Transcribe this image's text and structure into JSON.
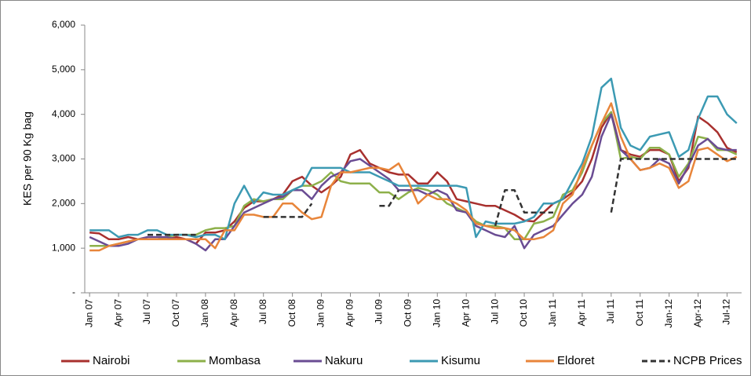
{
  "chart_data": {
    "type": "line",
    "y_label": "KES per 90 Kg bag",
    "categories": [
      "Jan 07",
      null,
      null,
      "Apr 07",
      null,
      null,
      "Jul 07",
      null,
      null,
      "Oct 07",
      null,
      null,
      "Jan 08",
      null,
      null,
      "Apr 08",
      null,
      null,
      "Jul 08",
      null,
      null,
      "Oct 08",
      null,
      null,
      "Jan 09",
      null,
      null,
      "Apr 09",
      null,
      null,
      "Jul 09",
      null,
      null,
      "Oct 09",
      null,
      null,
      "Jan 10",
      null,
      null,
      "Apr 10",
      null,
      null,
      "Jul 10",
      null,
      null,
      "Oct 10",
      null,
      null,
      "Jan 11",
      null,
      null,
      "Apr 11",
      null,
      null,
      "Jul 11",
      null,
      null,
      "Oct 11",
      null,
      null,
      "Jan-12",
      null,
      null,
      "Apr-12",
      null,
      null,
      "Jul-12",
      null
    ],
    "ylim": [
      0,
      6000
    ],
    "yticks": [
      {
        "value": 0,
        "label": "-"
      },
      {
        "value": 1000,
        "label": "1,000"
      },
      {
        "value": 2000,
        "label": "2,000"
      },
      {
        "value": 3000,
        "label": "3,000"
      },
      {
        "value": 4000,
        "label": "4,000"
      },
      {
        "value": 5000,
        "label": "5,000"
      },
      {
        "value": 6000,
        "label": "6,000"
      }
    ],
    "grid": false,
    "legend": "bottom",
    "series": [
      {
        "name": "Nairobi",
        "color": "#a8302e",
        "values": [
          1350,
          1330,
          1200,
          1200,
          1250,
          1200,
          1200,
          1200,
          1200,
          1250,
          1200,
          1100,
          1350,
          1350,
          1400,
          1600,
          1900,
          2050,
          2050,
          2100,
          2200,
          2500,
          2600,
          2400,
          2250,
          2400,
          2600,
          3100,
          3200,
          2900,
          2800,
          2700,
          2650,
          2650,
          2450,
          2450,
          2700,
          2500,
          2100,
          2050,
          2000,
          1950,
          1950,
          1850,
          1750,
          1620,
          1600,
          1800,
          2000,
          2100,
          2250,
          2500,
          3000,
          3700,
          4050,
          3200,
          3100,
          3050,
          3200,
          3200,
          3100,
          2500,
          2800,
          3950,
          3800,
          3600,
          3250,
          3150
        ]
      },
      {
        "name": "Mombasa",
        "color": "#8db04a",
        "values": [
          1050,
          1050,
          1050,
          1100,
          1150,
          1200,
          1200,
          1200,
          1250,
          1300,
          1300,
          1300,
          1400,
          1450,
          1450,
          1500,
          1950,
          2100,
          2050,
          2100,
          2100,
          2300,
          2400,
          2400,
          2500,
          2700,
          2500,
          2450,
          2450,
          2450,
          2250,
          2250,
          2100,
          2250,
          2350,
          2300,
          2200,
          2000,
          1900,
          1800,
          1600,
          1500,
          1500,
          1450,
          1200,
          1200,
          1550,
          1600,
          1700,
          2200,
          2300,
          2700,
          3300,
          3800,
          4050,
          3000,
          3050,
          3000,
          3250,
          3250,
          3100,
          2600,
          2900,
          3500,
          3450,
          3200,
          3200,
          3100
        ]
      },
      {
        "name": "Nakuru",
        "color": "#6a4c93",
        "values": [
          1250,
          1150,
          1050,
          1050,
          1100,
          1200,
          1250,
          1250,
          1250,
          1200,
          1200,
          1100,
          950,
          1200,
          1200,
          1500,
          1800,
          1900,
          2000,
          2100,
          2150,
          2300,
          2300,
          2100,
          2400,
          2600,
          2700,
          2950,
          3000,
          2850,
          2700,
          2550,
          2300,
          2300,
          2300,
          2200,
          2300,
          2200,
          1850,
          1800,
          1500,
          1400,
          1300,
          1250,
          1500,
          1000,
          1300,
          1400,
          1500,
          1750,
          2000,
          2200,
          2600,
          3500,
          4000,
          3200,
          3000,
          2750,
          2800,
          3000,
          2900,
          2450,
          2850,
          3300,
          3450,
          3250,
          3200,
          3200
        ]
      },
      {
        "name": "Kisumu",
        "color": "#3c9ab3",
        "values": [
          1400,
          1400,
          1400,
          1250,
          1300,
          1300,
          1400,
          1400,
          1300,
          1300,
          1300,
          1250,
          1300,
          1300,
          1200,
          2000,
          2400,
          2000,
          2250,
          2200,
          2200,
          2300,
          2400,
          2800,
          2800,
          2800,
          2800,
          2700,
          2700,
          2700,
          2600,
          2500,
          2400,
          2400,
          2400,
          2400,
          2400,
          2400,
          2400,
          2350,
          1250,
          1600,
          1550,
          1550,
          1550,
          1600,
          1700,
          2000,
          2000,
          2100,
          2500,
          2900,
          3500,
          4600,
          4800,
          3700,
          3300,
          3200,
          3500,
          3550,
          3600,
          3050,
          3200,
          3900,
          4400,
          4400,
          4000,
          3800
        ]
      },
      {
        "name": "Eldoret",
        "color": "#e8853a",
        "values": [
          950,
          950,
          1050,
          1100,
          1150,
          1200,
          1200,
          1200,
          1200,
          1200,
          1200,
          1200,
          1200,
          1000,
          1400,
          1400,
          1750,
          1750,
          1700,
          1700,
          2000,
          2000,
          1800,
          1650,
          1700,
          2400,
          2700,
          2700,
          2750,
          2800,
          2800,
          2750,
          2900,
          2500,
          2000,
          2200,
          2100,
          2100,
          2000,
          1850,
          1550,
          1500,
          1450,
          1450,
          1400,
          1200,
          1200,
          1250,
          1400,
          2000,
          2200,
          2800,
          3300,
          3800,
          4250,
          3500,
          3000,
          2750,
          2800,
          2900,
          2800,
          2350,
          2500,
          3200,
          3250,
          3100,
          2950,
          3050
        ]
      },
      {
        "name": "NCPB Prices",
        "color": "#333333",
        "dashed": true,
        "values": [
          null,
          null,
          null,
          null,
          null,
          null,
          1300,
          1300,
          1300,
          1300,
          1300,
          1300,
          null,
          null,
          null,
          null,
          null,
          null,
          1700,
          1700,
          1700,
          1700,
          1700,
          2000,
          null,
          null,
          null,
          null,
          null,
          null,
          1950,
          1950,
          2300,
          null,
          null,
          null,
          null,
          null,
          null,
          null,
          null,
          null,
          1500,
          2300,
          2300,
          1800,
          1800,
          1800,
          1800,
          null,
          null,
          null,
          null,
          null,
          1800,
          3000,
          3000,
          3000,
          3000,
          3000,
          3000,
          3000,
          3000,
          3000,
          3000,
          3000,
          3000,
          3000
        ]
      }
    ]
  }
}
